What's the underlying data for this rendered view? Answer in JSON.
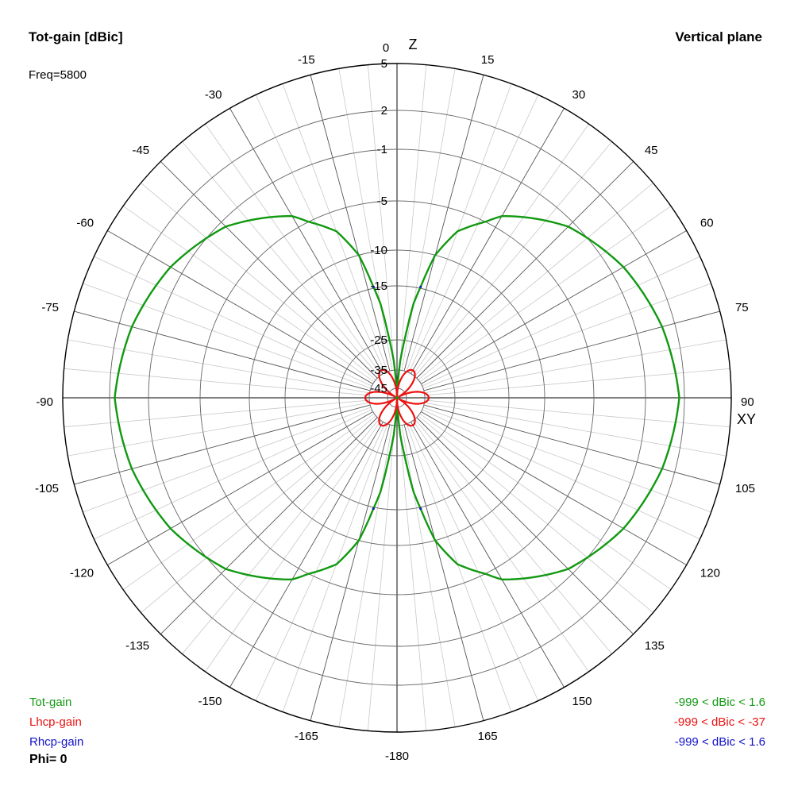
{
  "header": {
    "title": "Tot-gain [dBic]",
    "plane": "Vertical plane",
    "freq": "Freq=5800"
  },
  "legend": {
    "items": [
      {
        "label": "Tot-gain",
        "range": "-999 < dBic < 1.6",
        "color": "#119911"
      },
      {
        "label": "Lhcp-gain",
        "range": "-999 < dBic < -37",
        "color": "#ee1111"
      },
      {
        "label": "Rhcp-gain",
        "range": "-999 < dBic < 1.6",
        "color": "#1111cc"
      }
    ],
    "phi": "Phi= 0"
  },
  "chart_data": {
    "type": "polar",
    "axis_top": "Z",
    "axis_right": "XY",
    "angle_ticks": [
      0,
      15,
      30,
      45,
      60,
      75,
      90,
      105,
      120,
      135,
      150,
      165,
      -180,
      -165,
      -150,
      -135,
      -120,
      -105,
      -90,
      -75,
      -60,
      -45,
      -30,
      -15
    ],
    "radial_ticks": [
      5,
      2,
      -1,
      -5,
      -10,
      -15,
      -25,
      -35,
      -45
    ],
    "angle_grid_step_deg": 5,
    "series": [
      {
        "name": "Tot-gain",
        "color": "#119911",
        "max_dbic": 1.6,
        "angles_deg": [
          0,
          5,
          10,
          15,
          20,
          30,
          45,
          60,
          75,
          90,
          105,
          120,
          135,
          150,
          160,
          165,
          170,
          175,
          180
        ],
        "gain_dbic": [
          -999,
          -32,
          -18,
          -10,
          -7,
          -4,
          -1.5,
          0,
          1.0,
          1.6,
          1.0,
          0,
          -1.5,
          -4,
          -7,
          -10,
          -18,
          -32,
          -999
        ]
      },
      {
        "name": "Lhcp-gain",
        "color": "#ee1111",
        "max_dbic": -37,
        "pattern": "six-lobe rosette near -37 dBic"
      },
      {
        "name": "Rhcp-gain",
        "color": "#1111cc",
        "max_dbic": 1.6,
        "note": "overlaps Tot-gain"
      }
    ]
  }
}
